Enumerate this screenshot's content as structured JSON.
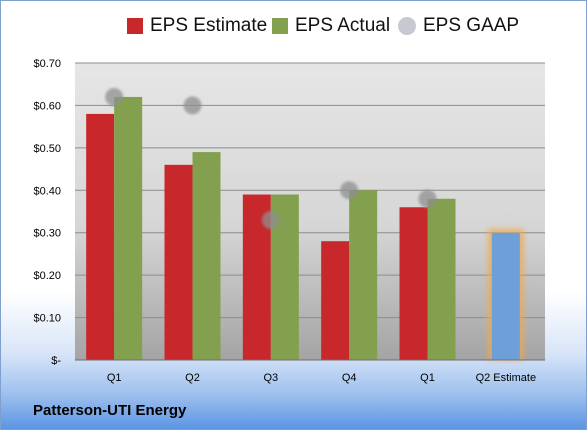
{
  "chart_data": {
    "type": "bar",
    "categories": [
      "Q1",
      "Q2",
      "Q3",
      "Q4",
      "Q1",
      "Q2 Estimate"
    ],
    "series": [
      {
        "name": "EPS Estimate",
        "values": [
          0.58,
          0.46,
          0.39,
          0.28,
          0.36,
          null
        ],
        "color": "#c8282c"
      },
      {
        "name": "EPS Actual",
        "values": [
          0.62,
          0.49,
          0.39,
          0.4,
          0.38,
          null
        ],
        "color": "#82a04e"
      },
      {
        "name": "EPS GAAP",
        "values": [
          0.62,
          0.6,
          0.33,
          0.4,
          0.38,
          null
        ],
        "color": "#b4b4b4",
        "marker": "circle"
      }
    ],
    "estimate": {
      "category": "Q2 Estimate",
      "value": 0.3,
      "color": "#6f9fd8",
      "outline": "#f0a850"
    },
    "yticks": [
      {
        "value": 0.7,
        "label": "$0.70"
      },
      {
        "value": 0.6,
        "label": "$0.60"
      },
      {
        "value": 0.5,
        "label": "$0.50"
      },
      {
        "value": 0.4,
        "label": "$0.40"
      },
      {
        "value": 0.3,
        "label": "$0.30"
      },
      {
        "value": 0.2,
        "label": "$0.20"
      },
      {
        "value": 0.1,
        "label": "$0.10"
      },
      {
        "value": 0.0,
        "label": "$-"
      }
    ],
    "ylim": [
      0,
      0.7
    ],
    "grid": true,
    "legend_position": "top",
    "company": "Patterson-UTI Energy"
  }
}
